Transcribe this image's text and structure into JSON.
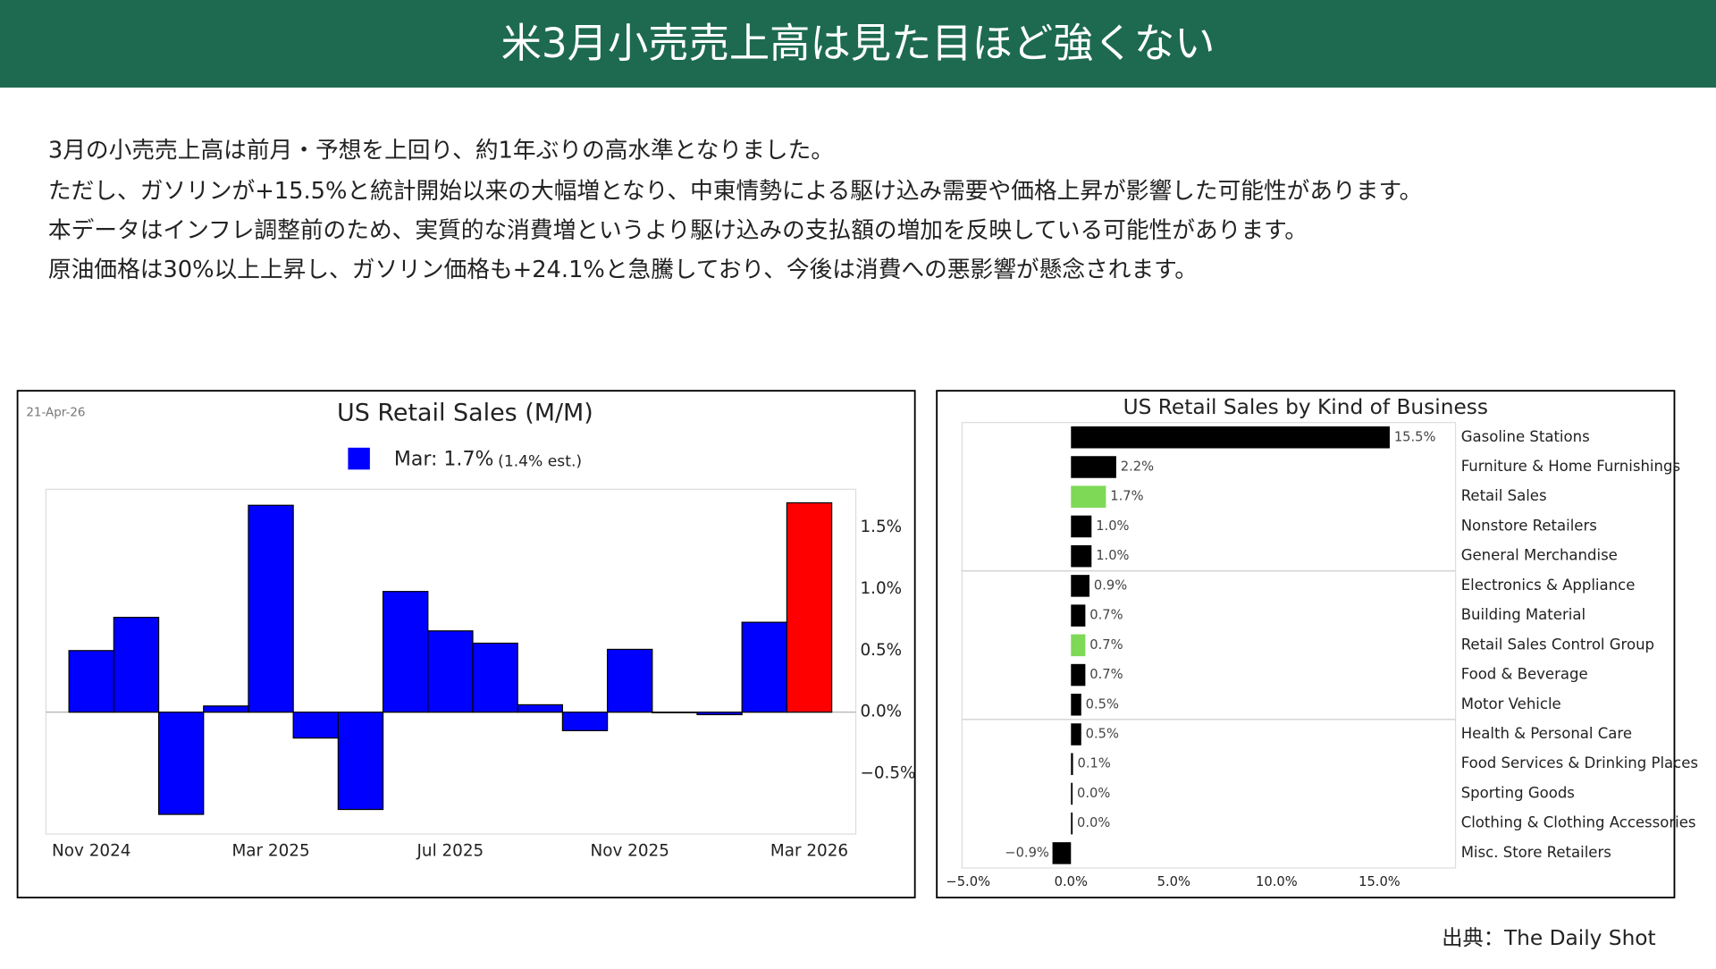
{
  "header": {
    "title": "米3月小売売上高は見た目ほど強くない"
  },
  "body": {
    "lines": [
      "3月の小売売上高は前月・予想を上回り、約1年ぶりの高水準となりました。",
      "ただし、ガソリンが+15.5%と統計開始以来の大幅増となり、中東情勢による駆け込み需要や価格上昇が影響した可能性があります。",
      "本データはインフレ調整前のため、実質的な消費増というより駆け込みの支払額の増加を反映している可能性があります。",
      "原油価格は30%以上上昇し、ガソリン価格も+24.1%と急騰しており、今後は消費への悪影響が懸念されます。"
    ]
  },
  "source": "出典：The Daily Shot",
  "chart_data": [
    {
      "type": "bar",
      "title": "US Retail Sales (M/M)",
      "date": "21-Apr-26",
      "legend_note": "(1.4% est.)",
      "categories": [
        "Nov 2024",
        null,
        null,
        null,
        "Mar 2025",
        null,
        null,
        null,
        "Jul 2025",
        null,
        null,
        null,
        "Nov 2025",
        null,
        null,
        null,
        "Mar 2026"
      ],
      "series": [
        {
          "name": "Mar: 1.7%",
          "color": "#0000ff",
          "values": [
            0.5,
            0.77,
            -0.83,
            0.05,
            1.68,
            -0.21,
            -0.79,
            0.98,
            0.66,
            0.56,
            0.06,
            -0.15,
            0.51,
            0.0,
            -0.02,
            0.73,
            1.7
          ],
          "colors": [
            "#0000ff",
            "#0000ff",
            "#0000ff",
            "#0000ff",
            "#0000ff",
            "#0000ff",
            "#0000ff",
            "#0000ff",
            "#0000ff",
            "#0000ff",
            "#0000ff",
            "#0000ff",
            "#0000ff",
            "#0000ff",
            "#0000ff",
            "#0000ff",
            "#ff0000"
          ]
        }
      ],
      "ylim": [
        -0.99,
        1.81
      ],
      "yticks": [
        {
          "value": -0.5,
          "label": "−0.5%"
        },
        {
          "value": 0,
          "label": "0.0%"
        },
        {
          "value": 0.5,
          "label": "0.5%"
        },
        {
          "value": 1,
          "label": "1.0%"
        },
        {
          "value": 1.5,
          "label": "1.5%"
        }
      ],
      "grid": false
    },
    {
      "type": "hbar",
      "title": "US Retail Sales by Kind of Business",
      "categories": [
        "Gasoline Stations",
        "Furniture & Home Furnishings",
        "Retail Sales",
        "Nonstore Retailers",
        "General Merchandise",
        "Electronics & Appliance",
        "Building Material",
        "Retail Sales Control Group",
        "Food & Beverage",
        "Motor Vehicle",
        "Health & Personal Care",
        "Food Services & Drinking Places",
        "Sporting Goods",
        "Clothing & Clothing Accessories",
        "Misc. Store Retailers"
      ],
      "values": [
        15.5,
        2.2,
        1.7,
        1.0,
        1.0,
        0.9,
        0.7,
        0.7,
        0.7,
        0.5,
        0.5,
        0.1,
        0.0,
        0.0,
        -0.9
      ],
      "value_labels": [
        "15.5%",
        "2.2%",
        "1.7%",
        "1.0%",
        "1.0%",
        "0.9%",
        "0.7%",
        "0.7%",
        "0.7%",
        "0.5%",
        "0.5%",
        "0.1%",
        "0.0%",
        "0.0%",
        "−0.9%"
      ],
      "colors": [
        "#000000",
        "#000000",
        "#7ed957",
        "#000000",
        "#000000",
        "#000000",
        "#000000",
        "#7ed957",
        "#000000",
        "#000000",
        "#000000",
        "#000000",
        "#000000",
        "#000000",
        "#000000"
      ],
      "xlim": [
        -5.3,
        18.7
      ],
      "xticks": [
        {
          "value": -5,
          "label": "−5.0%"
        },
        {
          "value": 0,
          "label": "0.0%"
        },
        {
          "value": 5,
          "label": "5.0%"
        },
        {
          "value": 10,
          "label": "10.0%"
        },
        {
          "value": 15,
          "label": "15.0%"
        }
      ]
    }
  ]
}
